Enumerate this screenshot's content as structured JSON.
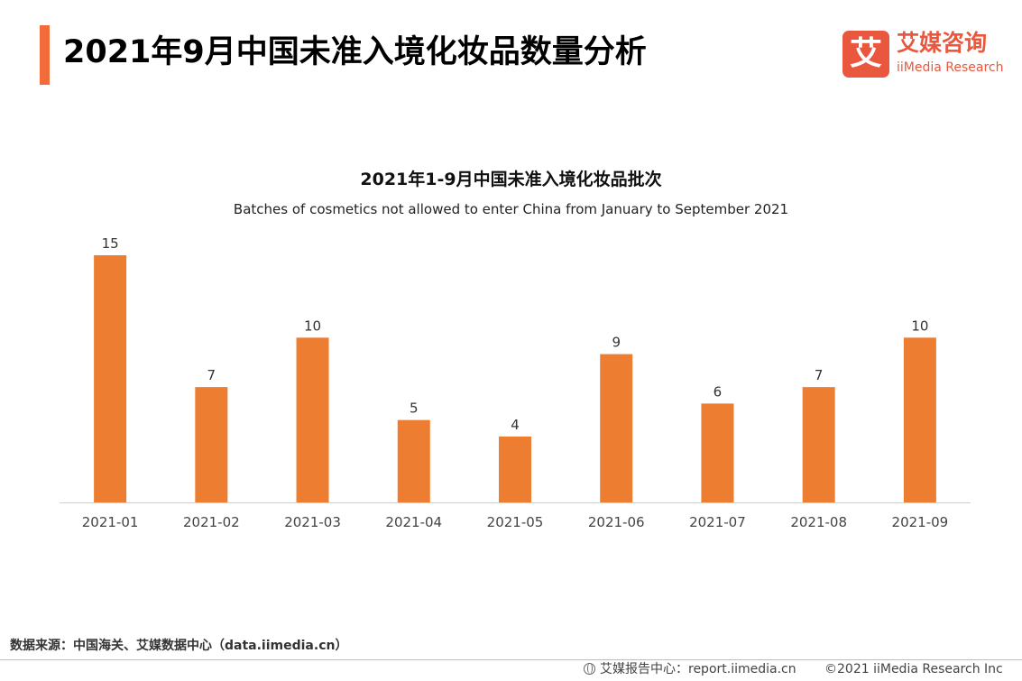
{
  "header": {
    "title": "2021年9月中国未准入境化妆品数量分析"
  },
  "logo": {
    "mark": "艾",
    "name_cn": "艾媒咨询",
    "name_en": "iiMedia Research",
    "color": "#e9573f"
  },
  "chart_data": {
    "type": "bar",
    "title": "2021年1-9月中国未准入境化妆品批次",
    "subtitle": "Batches of cosmetics not allowed to enter China from January to September 2021",
    "categories": [
      "2021-01",
      "2021-02",
      "2021-03",
      "2021-04",
      "2021-05",
      "2021-06",
      "2021-07",
      "2021-08",
      "2021-09"
    ],
    "values": [
      15,
      7,
      10,
      5,
      4,
      9,
      6,
      7,
      10
    ],
    "ylim": [
      0,
      15
    ],
    "grid": false,
    "legend": "none",
    "bar_color": "#ed7d31",
    "data_labels": true
  },
  "footer": {
    "source": "数据来源：中国海关、艾媒数据中心（data.iimedia.cn）",
    "report_site": "艾媒报告中心：report.iimedia.cn",
    "copyright": "©2021  iiMedia Research  Inc"
  }
}
